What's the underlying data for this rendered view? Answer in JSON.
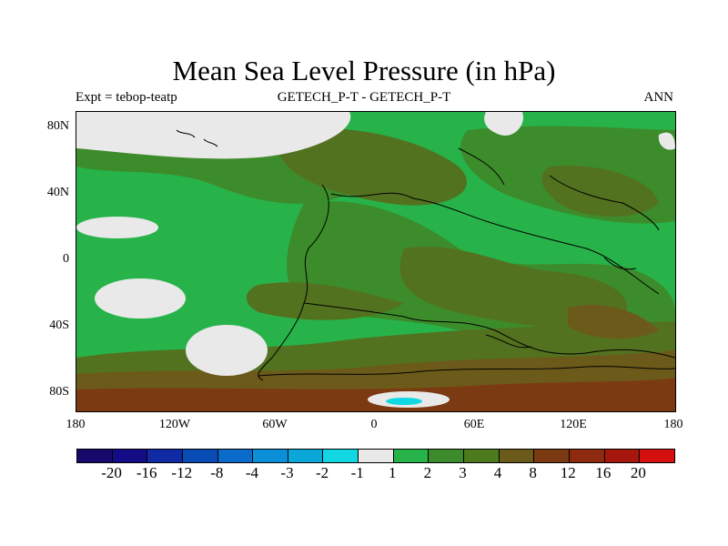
{
  "title": "Mean Sea Level Pressure (in hPa)",
  "subtitle_left": "Expt = tebop-teatp",
  "subtitle_center": "GETECH_P-T - GETECH_P-T",
  "subtitle_right": "ANN",
  "lat_labels": [
    "80N",
    "40N",
    "0",
    "40S",
    "80S"
  ],
  "lon_labels": [
    "180",
    "120W",
    "60W",
    "0",
    "60E",
    "120E",
    "180"
  ],
  "colorbar": {
    "colors": [
      "#16096b",
      "#140c86",
      "#0f2aa3",
      "#0a4cb6",
      "#0a6bca",
      "#0c8fd9",
      "#0ba7d8",
      "#10d7e1",
      "#e9e9e9",
      "#27b34a",
      "#3d8c2b",
      "#4e7a1e",
      "#6c5a1a",
      "#7c3a12",
      "#8e2a10",
      "#a8170d",
      "#d60f0f"
    ],
    "labels": [
      "-20",
      "-16",
      "-12",
      "-8",
      "-4",
      "-3",
      "-2",
      "-1",
      "1",
      "2",
      "3",
      "4",
      "8",
      "12",
      "16",
      "20"
    ]
  },
  "map_colors": {
    "bright_green": "#27b34a",
    "mid_green": "#3d8c2b",
    "olive": "#53721f",
    "brown": "#6c5a1a",
    "dark_red_brown": "#7c3a12",
    "white": "#e9e9e9",
    "cyan": "#10d7e1"
  }
}
